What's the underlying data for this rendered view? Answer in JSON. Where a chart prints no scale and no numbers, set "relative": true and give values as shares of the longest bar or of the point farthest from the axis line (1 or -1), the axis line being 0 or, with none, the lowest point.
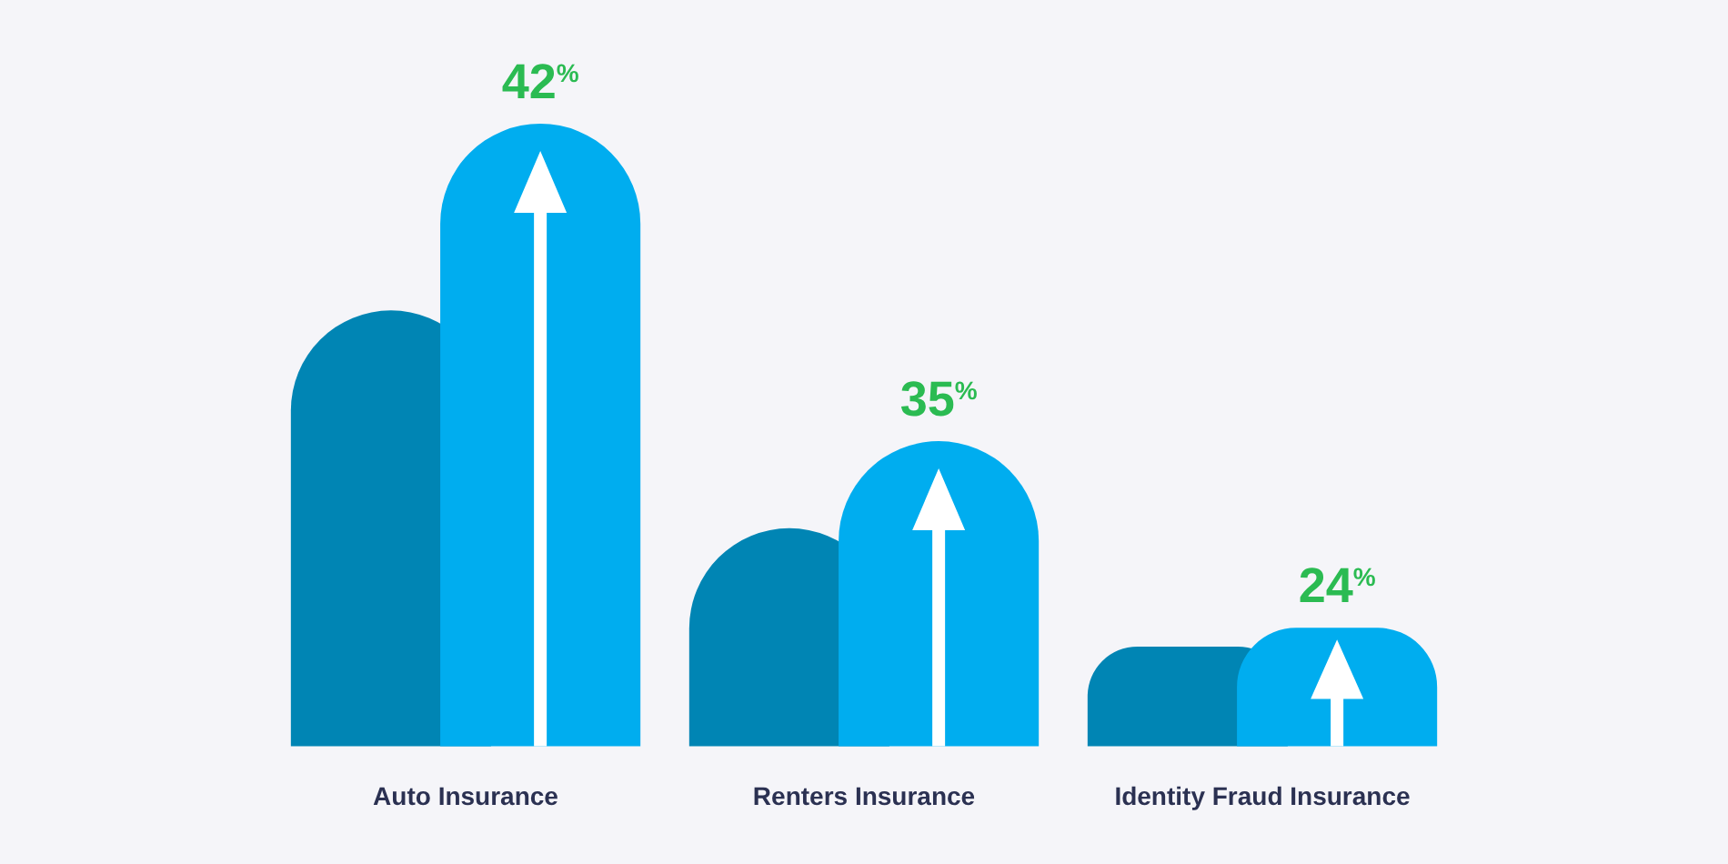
{
  "chart_data": {
    "type": "bar",
    "relative": true,
    "categories": [
      "Auto Insurance",
      "Renters Insurance",
      "Identity Fraud Insurance"
    ],
    "series": [
      {
        "color": "#0085b4",
        "values": [
          0.7,
          0.35,
          0.16
        ]
      },
      {
        "color": "#00adef",
        "values": [
          1,
          0.49,
          0.19
        ]
      }
    ],
    "annotations": [
      "42$^{%}$",
      "35$^{%}$",
      "24$^{%}$"
    ]
  }
}
